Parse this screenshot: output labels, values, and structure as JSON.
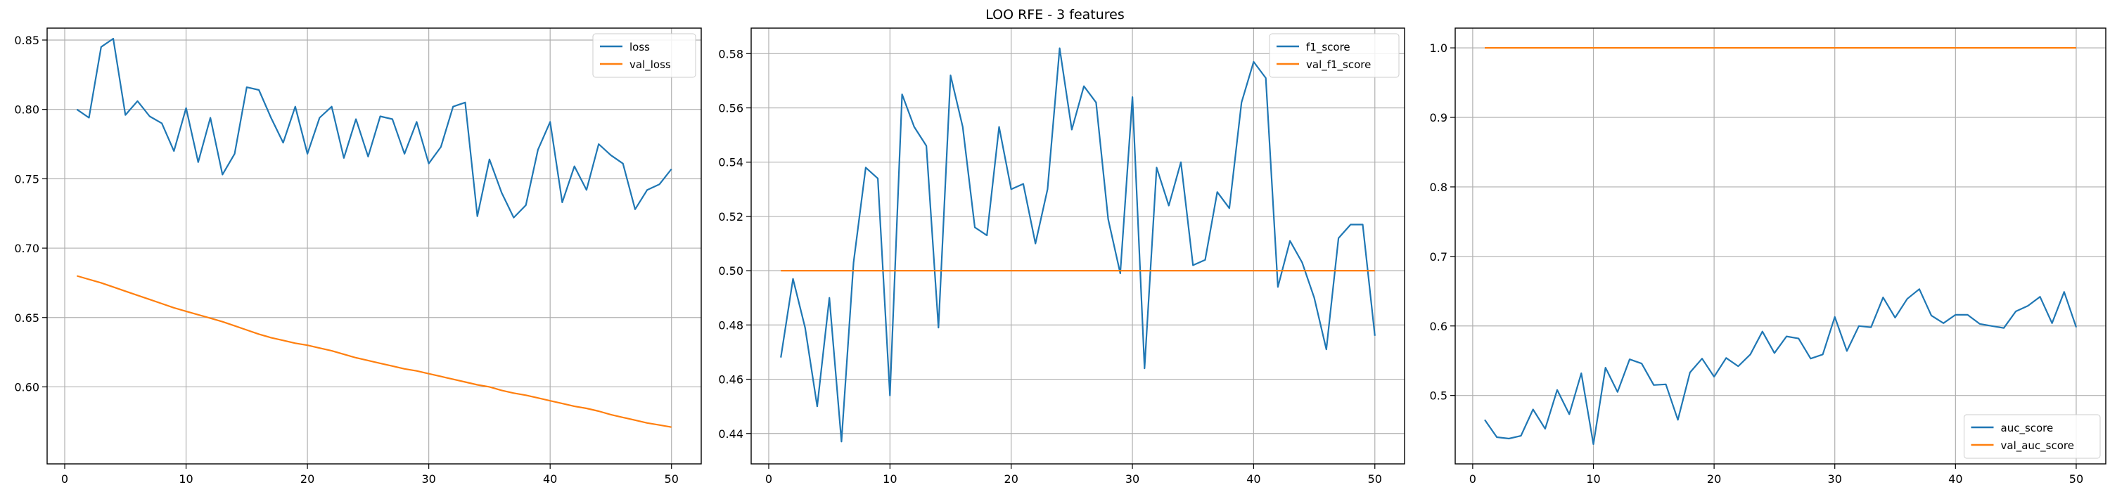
{
  "figure": {
    "title": "LOO RFE - 3 features"
  },
  "colors": {
    "series1": "#1f77b4",
    "series2": "#ff7f0e",
    "grid": "#b0b0b0"
  },
  "chart_data": [
    {
      "type": "line",
      "title": "",
      "xlabel": "",
      "ylabel": "",
      "xlim": [
        -1.45,
        52.45
      ],
      "ylim": [
        0.5445,
        0.8586
      ],
      "xticks": [
        0,
        10,
        20,
        30,
        40,
        50
      ],
      "yticks": [
        0.6,
        0.65,
        0.7,
        0.75,
        0.8,
        0.85
      ],
      "ytick_decimals": 2,
      "grid": true,
      "legend_position": "upper right",
      "x": [
        1,
        2,
        3,
        4,
        5,
        6,
        7,
        8,
        9,
        10,
        11,
        12,
        13,
        14,
        15,
        16,
        17,
        18,
        19,
        20,
        21,
        22,
        23,
        24,
        25,
        26,
        27,
        28,
        29,
        30,
        31,
        32,
        33,
        34,
        35,
        36,
        37,
        38,
        39,
        40,
        41,
        42,
        43,
        44,
        45,
        46,
        47,
        48,
        49,
        50
      ],
      "series": [
        {
          "name": "loss",
          "color": "#1f77b4",
          "values": [
            0.8,
            0.794,
            0.845,
            0.851,
            0.796,
            0.806,
            0.795,
            0.79,
            0.77,
            0.801,
            0.762,
            0.794,
            0.753,
            0.768,
            0.816,
            0.814,
            0.794,
            0.776,
            0.802,
            0.768,
            0.794,
            0.802,
            0.765,
            0.793,
            0.766,
            0.795,
            0.793,
            0.768,
            0.791,
            0.761,
            0.773,
            0.802,
            0.805,
            0.723,
            0.764,
            0.74,
            0.722,
            0.731,
            0.771,
            0.791,
            0.733,
            0.759,
            0.742,
            0.775,
            0.767,
            0.761,
            0.728,
            0.742,
            0.746,
            0.757
          ]
        },
        {
          "name": "val_loss",
          "color": "#ff7f0e",
          "values": [
            0.68,
            0.6775,
            0.675,
            0.672,
            0.669,
            0.666,
            0.663,
            0.66,
            0.657,
            0.6545,
            0.652,
            0.6495,
            0.647,
            0.644,
            0.641,
            0.638,
            0.6355,
            0.6335,
            0.6315,
            0.63,
            0.628,
            0.626,
            0.6235,
            0.621,
            0.619,
            0.617,
            0.615,
            0.613,
            0.6115,
            0.6095,
            0.6075,
            0.6055,
            0.6035,
            0.6015,
            0.6,
            0.5975,
            0.5955,
            0.594,
            0.592,
            0.59,
            0.588,
            0.586,
            0.5845,
            0.5825,
            0.58,
            0.578,
            0.576,
            0.574,
            0.5725,
            0.571
          ]
        }
      ]
    },
    {
      "type": "line",
      "title": "",
      "xlabel": "",
      "ylabel": "",
      "xlim": [
        -1.45,
        52.45
      ],
      "ylim": [
        0.4288,
        0.5894
      ],
      "xticks": [
        0,
        10,
        20,
        30,
        40,
        50
      ],
      "yticks": [
        0.44,
        0.46,
        0.48,
        0.5,
        0.52,
        0.54,
        0.56,
        0.58
      ],
      "ytick_decimals": 2,
      "grid": true,
      "legend_position": "upper right",
      "x": [
        1,
        2,
        3,
        4,
        5,
        6,
        7,
        8,
        9,
        10,
        11,
        12,
        13,
        14,
        15,
        16,
        17,
        18,
        19,
        20,
        21,
        22,
        23,
        24,
        25,
        26,
        27,
        28,
        29,
        30,
        31,
        32,
        33,
        34,
        35,
        36,
        37,
        38,
        39,
        40,
        41,
        42,
        43,
        44,
        45,
        46,
        47,
        48,
        49,
        50
      ],
      "series": [
        {
          "name": "f1_score",
          "color": "#1f77b4",
          "values": [
            0.468,
            0.497,
            0.479,
            0.45,
            0.49,
            0.437,
            0.503,
            0.538,
            0.534,
            0.454,
            0.565,
            0.553,
            0.546,
            0.479,
            0.572,
            0.553,
            0.516,
            0.513,
            0.553,
            0.53,
            0.532,
            0.51,
            0.53,
            0.582,
            0.552,
            0.568,
            0.562,
            0.519,
            0.499,
            0.564,
            0.464,
            0.538,
            0.524,
            0.54,
            0.502,
            0.504,
            0.529,
            0.523,
            0.562,
            0.577,
            0.571,
            0.494,
            0.511,
            0.503,
            0.49,
            0.471,
            0.512,
            0.517,
            0.517,
            0.476
          ]
        },
        {
          "name": "val_f1_score",
          "color": "#ff7f0e",
          "values": [
            0.5,
            0.5,
            0.5,
            0.5,
            0.5,
            0.5,
            0.5,
            0.5,
            0.5,
            0.5,
            0.5,
            0.5,
            0.5,
            0.5,
            0.5,
            0.5,
            0.5,
            0.5,
            0.5,
            0.5,
            0.5,
            0.5,
            0.5,
            0.5,
            0.5,
            0.5,
            0.5,
            0.5,
            0.5,
            0.5,
            0.5,
            0.5,
            0.5,
            0.5,
            0.5,
            0.5,
            0.5,
            0.5,
            0.5,
            0.5,
            0.5,
            0.5,
            0.5,
            0.5,
            0.5,
            0.5,
            0.5,
            0.5,
            0.5,
            0.5
          ]
        }
      ]
    },
    {
      "type": "line",
      "title": "",
      "xlabel": "",
      "ylabel": "",
      "xlim": [
        -1.45,
        52.45
      ],
      "ylim": [
        0.4016,
        1.0284
      ],
      "xticks": [
        0,
        10,
        20,
        30,
        40,
        50
      ],
      "yticks": [
        0.5,
        0.6,
        0.7,
        0.8,
        0.9,
        1.0
      ],
      "ytick_decimals": 1,
      "grid": true,
      "legend_position": "lower right",
      "x": [
        1,
        2,
        3,
        4,
        5,
        6,
        7,
        8,
        9,
        10,
        11,
        12,
        13,
        14,
        15,
        16,
        17,
        18,
        19,
        20,
        21,
        22,
        23,
        24,
        25,
        26,
        27,
        28,
        29,
        30,
        31,
        32,
        33,
        34,
        35,
        36,
        37,
        38,
        39,
        40,
        41,
        42,
        43,
        44,
        45,
        46,
        47,
        48,
        49,
        50
      ],
      "series": [
        {
          "name": "auc_score",
          "color": "#1f77b4",
          "values": [
            0.465,
            0.44,
            0.438,
            0.442,
            0.48,
            0.452,
            0.508,
            0.473,
            0.532,
            0.43,
            0.54,
            0.505,
            0.552,
            0.546,
            0.515,
            0.516,
            0.465,
            0.533,
            0.553,
            0.527,
            0.554,
            0.542,
            0.559,
            0.592,
            0.561,
            0.585,
            0.582,
            0.553,
            0.559,
            0.613,
            0.564,
            0.6,
            0.598,
            0.641,
            0.612,
            0.639,
            0.653,
            0.615,
            0.604,
            0.616,
            0.616,
            0.603,
            0.6,
            0.597,
            0.621,
            0.629,
            0.642,
            0.604,
            0.649,
            0.598
          ]
        },
        {
          "name": "val_auc_score",
          "color": "#ff7f0e",
          "values": [
            1.0,
            1.0,
            1.0,
            1.0,
            1.0,
            1.0,
            1.0,
            1.0,
            1.0,
            1.0,
            1.0,
            1.0,
            1.0,
            1.0,
            1.0,
            1.0,
            1.0,
            1.0,
            1.0,
            1.0,
            1.0,
            1.0,
            1.0,
            1.0,
            1.0,
            1.0,
            1.0,
            1.0,
            1.0,
            1.0,
            1.0,
            1.0,
            1.0,
            1.0,
            1.0,
            1.0,
            1.0,
            1.0,
            1.0,
            1.0,
            1.0,
            1.0,
            1.0,
            1.0,
            1.0,
            1.0,
            1.0,
            1.0,
            1.0,
            1.0
          ]
        }
      ]
    }
  ]
}
